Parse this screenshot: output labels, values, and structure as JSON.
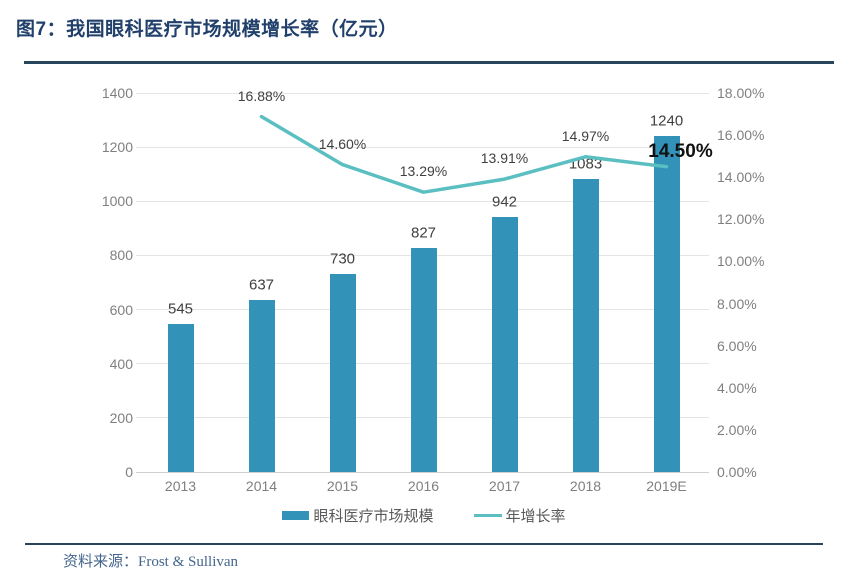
{
  "figure": {
    "title": "图7：我国眼科医疗市场规模增长率（亿元）",
    "source_label": "资料来源：Frost & Sullivan"
  },
  "chart_data": {
    "type": "bar",
    "subtype": "combo-bar-line-dual-axis",
    "title": "图7：我国眼科医疗市场规模增长率（亿元）",
    "categories": [
      "2013",
      "2014",
      "2015",
      "2016",
      "2017",
      "2018",
      "2019E"
    ],
    "series": [
      {
        "name": "眼科医疗市场规模",
        "type": "bar",
        "axis": "left",
        "color": "#3292B8",
        "values": [
          545,
          637,
          730,
          827,
          942,
          1083,
          1240
        ],
        "labels": [
          "545",
          "637",
          "730",
          "827",
          "942",
          "1083",
          "1240"
        ]
      },
      {
        "name": "年增长率",
        "type": "line",
        "axis": "right",
        "color": "#5BBFC1",
        "values": [
          null,
          16.88,
          14.6,
          13.29,
          13.91,
          14.97,
          14.5
        ],
        "labels": [
          null,
          "16.88%",
          "14.60%",
          "13.29%",
          "13.91%",
          "14.97%",
          "14.50%"
        ]
      }
    ],
    "left_axis": {
      "min": 0,
      "max": 1400,
      "step": 200,
      "tick_labels": [
        "0",
        "200",
        "400",
        "600",
        "800",
        "1000",
        "1200",
        "1400"
      ]
    },
    "right_axis": {
      "min": 0,
      "max": 18,
      "step": 2,
      "tick_labels": [
        "0.00%",
        "2.00%",
        "4.00%",
        "6.00%",
        "8.00%",
        "10.00%",
        "12.00%",
        "14.00%",
        "16.00%",
        "18.00%"
      ]
    },
    "legend": {
      "position": "bottom",
      "entries": [
        "眼科医疗市场规模",
        "年增长率"
      ]
    },
    "grid": true
  },
  "colors": {
    "bar": "#3292B8",
    "line": "#5BBFC1",
    "title": "#21406B",
    "divider": "#27465C",
    "source_text": "#44658C",
    "tick_label": "#7F7F7F",
    "value_label": "#404040",
    "gridline": "#E4E4E4"
  }
}
